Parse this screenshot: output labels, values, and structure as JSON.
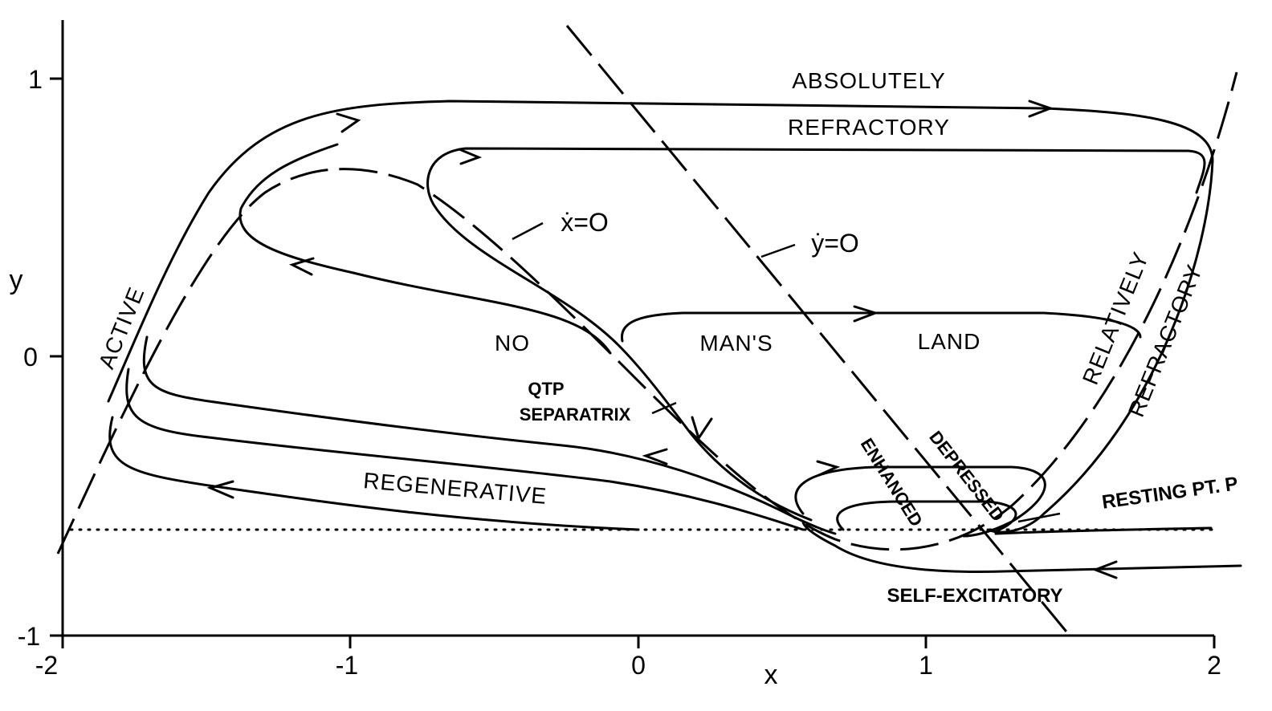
{
  "axes": {
    "xlabel": "x",
    "ylabel": "y",
    "xlim": [
      -2,
      2
    ],
    "ylim": [
      -1,
      1.2
    ],
    "x_ticks": [
      {
        "value": -2,
        "label": "-2"
      },
      {
        "value": -1,
        "label": "-1"
      },
      {
        "value": 0,
        "label": "0"
      },
      {
        "value": 1,
        "label": "1"
      },
      {
        "value": 2,
        "label": "2"
      }
    ],
    "y_ticks": [
      {
        "value": -1,
        "label": "-1"
      },
      {
        "value": 0,
        "label": "0"
      },
      {
        "value": 1,
        "label": "1"
      }
    ]
  },
  "labels": {
    "absolutely": "ABSOLUTELY",
    "refractory_top": "REFRACTORY",
    "active": "ACTIVE",
    "no": "NO",
    "mans": "MAN'S",
    "land": "LAND",
    "relatively": "RELATIVELY",
    "refractory_right": "REFRACTORY",
    "regenerative": "REGENERATIVE",
    "self_excitatory": "SELF-EXCITATORY",
    "resting": "RESTING  PT. P",
    "qtp": "QTP",
    "separatrix": "SEPARATRIX",
    "enhanced": "ENHANCED",
    "depressed": "DEPRESSED",
    "x_null": "ẋ=O",
    "y_null": "ẏ=O"
  }
}
